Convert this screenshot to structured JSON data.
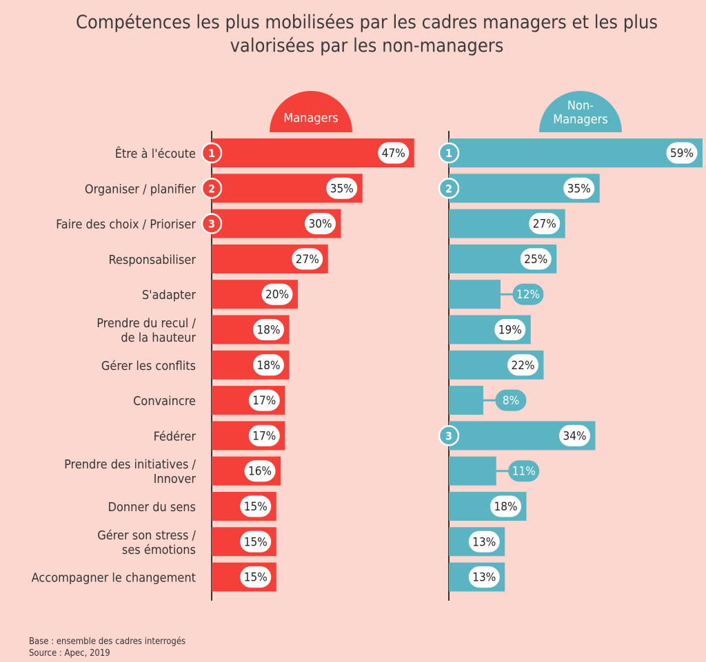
{
  "title_line1": "Compétences les plus mobilisées par les cadres managers et les plus",
  "title_line2": "valorisées par les non-managers",
  "footer": {
    "base": "Base : ensemble des cadres interrogés",
    "source": "Source : Apec, 2019"
  },
  "colors": {
    "background": "#fcd7d0",
    "managers": "#f5403a",
    "non_managers": "#5bb4c2",
    "label_text": "#333333"
  },
  "chart_data": {
    "type": "bar",
    "orientation": "horizontal",
    "unit": "%",
    "categories": [
      [
        "Être à l'écoute"
      ],
      [
        "Organiser / planifier"
      ],
      [
        "Faire des choix / Prioriser"
      ],
      [
        "Responsabiliser"
      ],
      [
        "S'adapter"
      ],
      [
        "Prendre du recul /",
        "de la hauteur"
      ],
      [
        "Gérer les conflits"
      ],
      [
        "Convaincre"
      ],
      [
        "Fédérer"
      ],
      [
        "Prendre des initiatives /",
        "Innover"
      ],
      [
        "Donner du sens"
      ],
      [
        "Gérer son stress /",
        "ses émotions"
      ],
      [
        "Accompagner le changement"
      ]
    ],
    "series": [
      {
        "name": "Managers",
        "values": [
          47,
          35,
          30,
          27,
          20,
          18,
          18,
          17,
          17,
          16,
          15,
          15,
          15
        ],
        "labels": [
          "47%",
          "35%",
          "30%",
          "27%",
          "20%",
          "18%",
          "18%",
          "17%",
          "17%",
          "16%",
          "15%",
          "15%",
          "15%"
        ],
        "ranks": [
          [
            "1",
            0
          ],
          [
            "2",
            1
          ],
          [
            "3",
            2
          ]
        ]
      },
      {
        "name_lines": [
          "Non-",
          "Managers"
        ],
        "values": [
          59,
          35,
          27,
          25,
          12,
          19,
          22,
          8,
          34,
          11,
          18,
          13,
          13
        ],
        "labels": [
          "59%",
          "35%",
          "27%",
          "25%",
          "12%",
          "19%",
          "22%",
          "8%",
          "34%",
          "11%",
          "18%",
          "13%",
          "13%"
        ],
        "ranks": [
          [
            "1",
            0
          ],
          [
            "2",
            1
          ],
          [
            "3",
            8
          ]
        ]
      }
    ]
  }
}
